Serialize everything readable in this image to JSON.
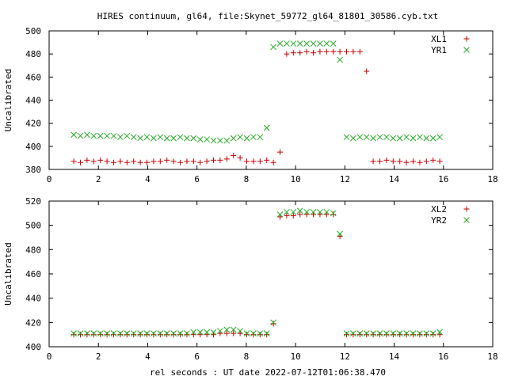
{
  "title": "HIRES continuum, gl64, file:Skynet_59772_gl64_81801_30586.cyb.txt",
  "xlabel": "rel seconds : UT date 2022-07-12T01:06:38.470",
  "colors": {
    "red": "#cc0000",
    "green": "#22aa22",
    "frame": "#000000"
  },
  "chart_data": [
    {
      "type": "scatter",
      "ylabel": "Uncalibrated",
      "xlim": [
        0,
        18
      ],
      "ylim": [
        380,
        500
      ],
      "xticks": [
        0,
        2,
        4,
        6,
        8,
        10,
        12,
        14,
        16,
        18
      ],
      "yticks": [
        380,
        400,
        420,
        440,
        460,
        480,
        500
      ],
      "legend_position": "top-right",
      "series": [
        {
          "name": "XL1",
          "marker": "plus",
          "color": "#cc0000",
          "x": [
            1.0,
            1.27,
            1.54,
            1.81,
            2.08,
            2.35,
            2.62,
            2.89,
            3.16,
            3.43,
            3.7,
            3.97,
            4.24,
            4.51,
            4.78,
            5.05,
            5.32,
            5.59,
            5.86,
            6.13,
            6.4,
            6.67,
            6.94,
            7.21,
            7.48,
            7.75,
            8.02,
            8.29,
            8.56,
            8.83,
            9.1,
            9.37,
            9.64,
            9.91,
            10.18,
            10.45,
            10.72,
            10.99,
            11.26,
            11.53,
            11.8,
            12.07,
            12.34,
            12.61,
            12.88,
            13.15,
            13.42,
            13.69,
            13.96,
            14.23,
            14.5,
            14.77,
            15.04,
            15.31,
            15.58,
            15.85
          ],
          "y": [
            387,
            386,
            388,
            387,
            388,
            387,
            386,
            387,
            386,
            387,
            386,
            386,
            387,
            387,
            388,
            387,
            386,
            387,
            387,
            386,
            387,
            388,
            388,
            389,
            392,
            390,
            387,
            387,
            387,
            388,
            386,
            395,
            480,
            481,
            481,
            482,
            481,
            482,
            482,
            482,
            482,
            482,
            482,
            482,
            465,
            387,
            387,
            388,
            387,
            387,
            386,
            387,
            386,
            387,
            388,
            387
          ]
        },
        {
          "name": "YR1",
          "marker": "cross",
          "color": "#22aa22",
          "x": [
            1.0,
            1.27,
            1.54,
            1.81,
            2.08,
            2.35,
            2.62,
            2.89,
            3.16,
            3.43,
            3.7,
            3.97,
            4.24,
            4.51,
            4.78,
            5.05,
            5.32,
            5.59,
            5.86,
            6.13,
            6.4,
            6.67,
            6.94,
            7.21,
            7.48,
            7.75,
            8.02,
            8.29,
            8.56,
            8.83,
            9.1,
            9.37,
            9.64,
            9.91,
            10.18,
            10.45,
            10.72,
            10.99,
            11.26,
            11.53,
            11.8,
            12.07,
            12.34,
            12.61,
            12.88,
            13.15,
            13.42,
            13.69,
            13.96,
            14.23,
            14.5,
            14.77,
            15.04,
            15.31,
            15.58,
            15.85
          ],
          "y": [
            410,
            409,
            410,
            409,
            409,
            409,
            409,
            408,
            409,
            408,
            407,
            408,
            407,
            408,
            407,
            407,
            408,
            407,
            407,
            406,
            406,
            405,
            405,
            405,
            407,
            408,
            407,
            408,
            408,
            416,
            486,
            489,
            489,
            489,
            489,
            489,
            489,
            489,
            489,
            489,
            475,
            408,
            407,
            408,
            408,
            407,
            408,
            408,
            407,
            407,
            408,
            407,
            408,
            407,
            407,
            408
          ]
        }
      ]
    },
    {
      "type": "scatter",
      "ylabel": "Uncalibrated",
      "xlim": [
        0,
        18
      ],
      "ylim": [
        400,
        520
      ],
      "xticks": [
        0,
        2,
        4,
        6,
        8,
        10,
        12,
        14,
        16,
        18
      ],
      "yticks": [
        400,
        420,
        440,
        460,
        480,
        500,
        520
      ],
      "legend_position": "top-right",
      "series": [
        {
          "name": "XL2",
          "marker": "plus",
          "color": "#cc0000",
          "x": [
            1.0,
            1.27,
            1.54,
            1.81,
            2.08,
            2.35,
            2.62,
            2.89,
            3.16,
            3.43,
            3.7,
            3.97,
            4.24,
            4.51,
            4.78,
            5.05,
            5.32,
            5.59,
            5.86,
            6.13,
            6.4,
            6.67,
            6.94,
            7.21,
            7.48,
            7.75,
            8.02,
            8.29,
            8.56,
            8.83,
            9.1,
            9.37,
            9.64,
            9.91,
            10.18,
            10.45,
            10.72,
            10.99,
            11.26,
            11.53,
            11.8,
            12.07,
            12.34,
            12.61,
            12.88,
            13.15,
            13.42,
            13.69,
            13.96,
            14.23,
            14.5,
            14.77,
            15.04,
            15.31,
            15.58,
            15.85
          ],
          "y": [
            410,
            410,
            410,
            410,
            410,
            410,
            410,
            410,
            410,
            410,
            410,
            410,
            410,
            410,
            410,
            410,
            410,
            410,
            410,
            410,
            410,
            410,
            411,
            411,
            411,
            411,
            410,
            410,
            410,
            410,
            419,
            507,
            508,
            508,
            509,
            509,
            509,
            509,
            509,
            509,
            491,
            410,
            410,
            410,
            410,
            410,
            410,
            410,
            410,
            410,
            410,
            410,
            410,
            410,
            410,
            410
          ]
        },
        {
          "name": "YR2",
          "marker": "cross",
          "color": "#22aa22",
          "x": [
            1.0,
            1.27,
            1.54,
            1.81,
            2.08,
            2.35,
            2.62,
            2.89,
            3.16,
            3.43,
            3.7,
            3.97,
            4.24,
            4.51,
            4.78,
            5.05,
            5.32,
            5.59,
            5.86,
            6.13,
            6.4,
            6.67,
            6.94,
            7.21,
            7.48,
            7.75,
            8.02,
            8.29,
            8.56,
            8.83,
            9.1,
            9.37,
            9.64,
            9.91,
            10.18,
            10.45,
            10.72,
            10.99,
            11.26,
            11.53,
            11.8,
            12.07,
            12.34,
            12.61,
            12.88,
            13.15,
            13.42,
            13.69,
            13.96,
            14.23,
            14.5,
            14.77,
            15.04,
            15.31,
            15.58,
            15.85
          ],
          "y": [
            411,
            411,
            411,
            411,
            411,
            411,
            411,
            411,
            411,
            411,
            411,
            411,
            411,
            411,
            411,
            411,
            411,
            411,
            412,
            412,
            412,
            412,
            413,
            414,
            414,
            413,
            411,
            411,
            411,
            411,
            420,
            509,
            511,
            511,
            512,
            511,
            511,
            511,
            511,
            510,
            493,
            411,
            411,
            411,
            411,
            411,
            411,
            411,
            411,
            411,
            411,
            411,
            411,
            411,
            411,
            412
          ]
        }
      ]
    }
  ]
}
